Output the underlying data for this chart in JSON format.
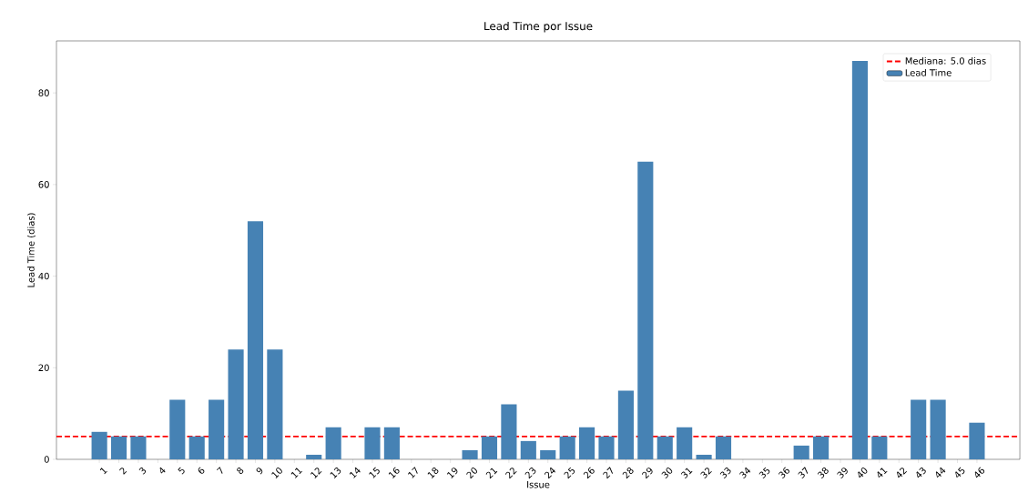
{
  "chart_data": {
    "type": "bar",
    "title": "Lead Time por Issue",
    "xlabel": "Issue",
    "ylabel": "Lead Time (dias)",
    "categories": [
      "1",
      "2",
      "3",
      "4",
      "5",
      "6",
      "7",
      "8",
      "9",
      "10",
      "11",
      "12",
      "13",
      "14",
      "15",
      "16",
      "17",
      "18",
      "19",
      "20",
      "21",
      "22",
      "23",
      "24",
      "25",
      "26",
      "27",
      "28",
      "29",
      "30",
      "31",
      "32",
      "33",
      "34",
      "35",
      "36",
      "37",
      "38",
      "39",
      "40",
      "41",
      "42",
      "43",
      "44",
      "45",
      "46"
    ],
    "series": [
      {
        "name": "Lead Time",
        "color": "#4682b4",
        "values": [
          6,
          5,
          5,
          0,
          13,
          5,
          13,
          24,
          52,
          24,
          0,
          1,
          7,
          0,
          7,
          7,
          0,
          0,
          0,
          2,
          5,
          12,
          4,
          2,
          5,
          7,
          5,
          15,
          65,
          5,
          7,
          1,
          5,
          0,
          0,
          0,
          3,
          5,
          0,
          87,
          5,
          0,
          13,
          13,
          0,
          8
        ]
      }
    ],
    "ref_lines": [
      {
        "axis": "y",
        "value": 5.0,
        "label": "Mediana: 5.0 dias",
        "color": "#ff0000",
        "line_style": "dashed"
      }
    ],
    "ylim": [
      0,
      91.35
    ],
    "yticks": [
      0,
      20,
      40,
      60,
      80
    ],
    "grid": false,
    "legend": "top right"
  }
}
